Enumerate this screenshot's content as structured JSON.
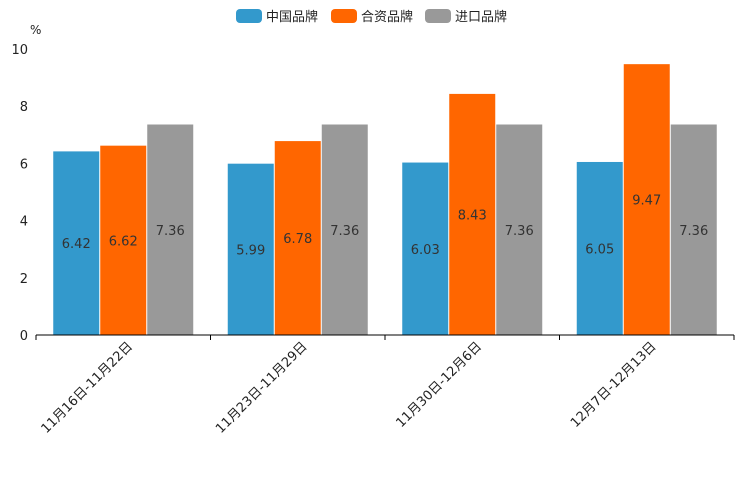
{
  "chart_data": {
    "type": "bar",
    "title": "",
    "xlabel": "",
    "ylabel": "",
    "unit": "%",
    "ylim": [
      0,
      10
    ],
    "yticks": [
      0,
      2,
      4,
      6,
      8,
      10
    ],
    "grid": false,
    "legend_position": "top-center",
    "categories": [
      "11月16日-11月22日",
      "11月23日-11月29日",
      "11月30日-12月6日",
      "12月7日-12月13日"
    ],
    "series": [
      {
        "name": "中国品牌",
        "color": "#3399cc",
        "values": [
          6.42,
          5.99,
          6.03,
          6.05
        ]
      },
      {
        "name": "合资品牌",
        "color": "#ff6600",
        "values": [
          6.62,
          6.78,
          8.43,
          9.47
        ]
      },
      {
        "name": "进口品牌",
        "color": "#999999",
        "values": [
          7.36,
          7.36,
          7.36,
          7.36
        ]
      }
    ]
  }
}
